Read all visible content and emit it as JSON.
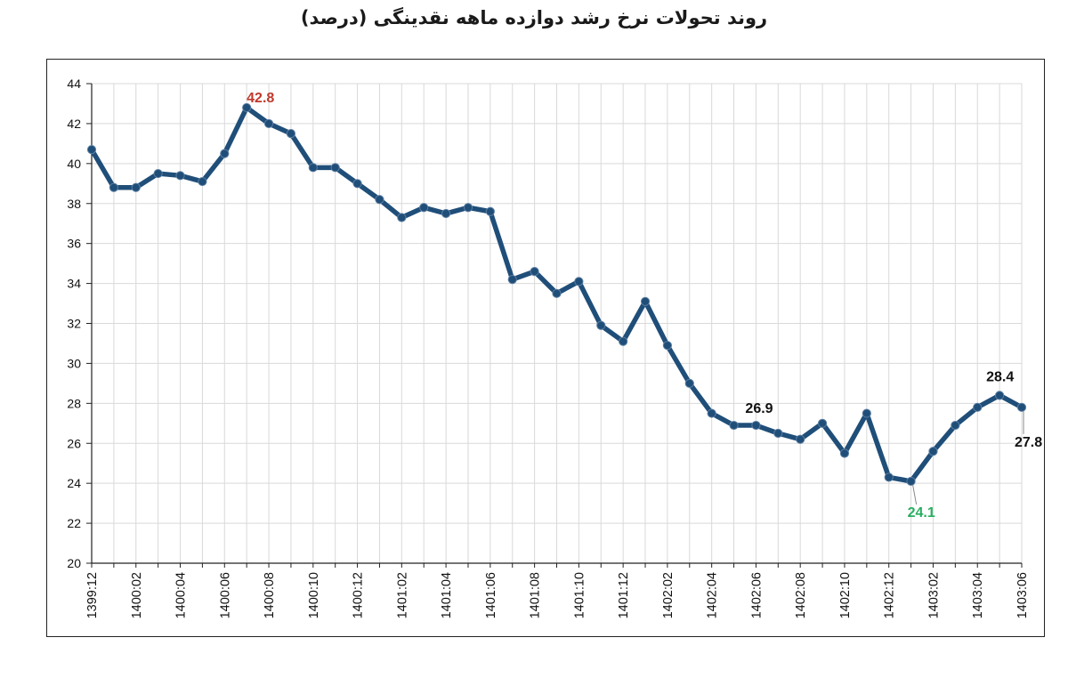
{
  "title": "روند تحولات نرخ رشد دوازده ماهه نقدینگی (درصد)",
  "colors": {
    "line": "#1f4e79",
    "annotation_max": "#c0392b",
    "annotation_min": "#27ae60",
    "annotation_default": "#111111",
    "grid": "#d9d9d9"
  },
  "chart_data": {
    "type": "line",
    "title": "روند تحولات نرخ رشد دوازده ماهه نقدینگی (درصد)",
    "xlabel": "",
    "ylabel": "",
    "ylim": [
      20,
      44
    ],
    "yticks": [
      20,
      22,
      24,
      26,
      28,
      30,
      32,
      34,
      36,
      38,
      40,
      42,
      44
    ],
    "grid": true,
    "legend": "none",
    "x_tick_labels": [
      "1399:12",
      "1400:02",
      "1400:04",
      "1400:06",
      "1400:08",
      "1400:10",
      "1400:12",
      "1401:02",
      "1401:04",
      "1401:06",
      "1401:08",
      "1401:10",
      "1401:12",
      "1402:02",
      "1402:04",
      "1402:06",
      "1402:08",
      "1402:10",
      "1402:12",
      "1403:02",
      "1403:04",
      "1403:06"
    ],
    "series": [
      {
        "values": [
          40.7,
          38.8,
          38.8,
          39.5,
          39.4,
          39.1,
          40.5,
          42.8,
          42.0,
          41.5,
          39.8,
          39.8,
          39.0,
          38.2,
          37.3,
          37.8,
          37.5,
          37.8,
          37.6,
          34.2,
          34.6,
          33.5,
          34.1,
          31.9,
          31.1,
          33.1,
          30.9,
          29.0,
          27.5,
          26.9,
          26.9,
          26.5,
          26.2,
          27.0,
          25.5,
          27.5,
          24.3,
          24.1,
          25.6,
          26.9,
          27.8,
          28.4,
          27.8
        ]
      }
    ],
    "annotations": [
      {
        "index": 7,
        "label": "42.8",
        "color_key": "annotation_max"
      },
      {
        "index": 30,
        "label": "26.9",
        "color_key": "annotation_default"
      },
      {
        "index": 37,
        "label": "24.1",
        "color_key": "annotation_min"
      },
      {
        "index": 41,
        "label": "28.4",
        "color_key": "annotation_default"
      },
      {
        "index": 42,
        "label": "27.8",
        "color_key": "annotation_default"
      }
    ]
  }
}
